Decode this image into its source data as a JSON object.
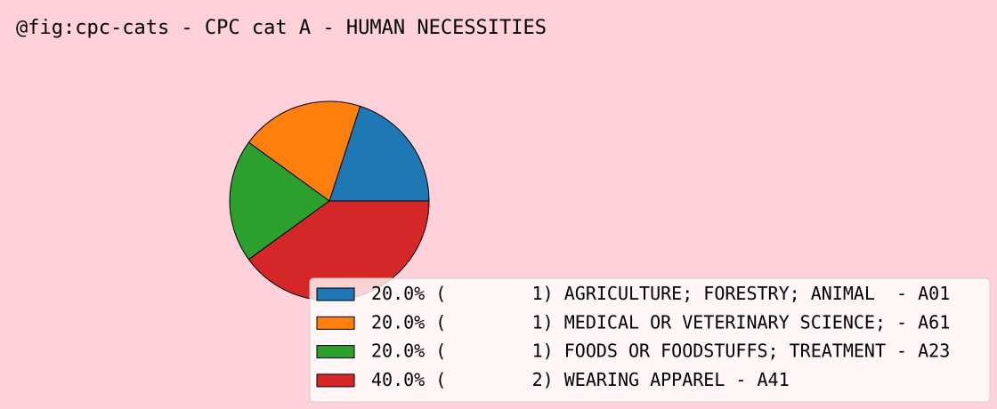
{
  "chart_data": {
    "type": "pie",
    "title": "@fig:cpc-cats - CPC cat A - HUMAN NECESSITIES",
    "categories": [
      " (        1) AGRICULTURE; FORESTRY; ANIMAL  - A01",
      " (        1) MEDICAL OR VETERINARY SCIENCE; - A61",
      " (        1) FOODS OR FOODSTUFFS; TREATMENT - A23",
      " (        2) WEARING APPAREL - A41"
    ],
    "values": [
      20,
      20,
      20,
      40
    ],
    "value_labels": [
      "20.0%",
      "20.0%",
      "20.0%",
      "40.0%"
    ],
    "colors": [
      "#1f77b4",
      "#ff7f0e",
      "#2ca02c",
      "#d62728"
    ],
    "legend": "lower right"
  }
}
